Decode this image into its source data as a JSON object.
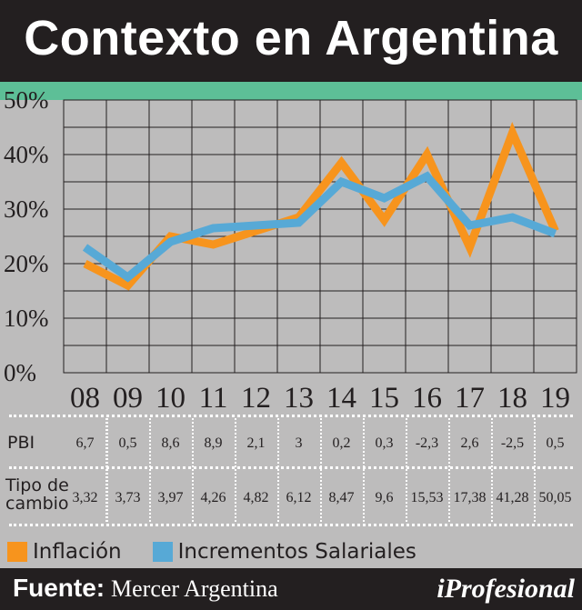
{
  "header": {
    "title": "Contexto en Argentina"
  },
  "colors": {
    "inflation": "#f7941d",
    "salary": "#57a9d6",
    "dark": "#231f20",
    "teal": "#5dbf97"
  },
  "chart_data": {
    "type": "line",
    "categories": [
      "08",
      "09",
      "10",
      "11",
      "12",
      "13",
      "14",
      "15",
      "16",
      "17",
      "18",
      "19"
    ],
    "y_ticks": [
      "0%",
      "10%",
      "20%",
      "30%",
      "40%",
      "50%"
    ],
    "ylim": [
      0,
      50
    ],
    "grid": true,
    "legend_position": "bottom",
    "series": [
      {
        "name": "Inflación",
        "values": [
          20,
          16,
          25,
          23.5,
          26,
          28.5,
          38.5,
          28,
          40,
          23,
          44,
          26
        ]
      },
      {
        "name": "Incrementos Salariales",
        "values": [
          23,
          17.5,
          24,
          26.5,
          27,
          27.5,
          35,
          32,
          36,
          27,
          28.5,
          25.5
        ]
      }
    ]
  },
  "table": {
    "rows": [
      {
        "label": "PBI",
        "values": [
          "6,7",
          "0,5",
          "8,6",
          "8,9",
          "2,1",
          "3",
          "0,2",
          "0,3",
          "-2,3",
          "2,6",
          "-2,5",
          "0,5"
        ]
      },
      {
        "label_line1": "Tipo de",
        "label_line2": "cambio",
        "values": [
          "3,32",
          "3,73",
          "3,97",
          "4,26",
          "4,82",
          "6,12",
          "8,47",
          "9,6",
          "15,53",
          "17,38",
          "41,28",
          "50,05"
        ]
      }
    ]
  },
  "legend": {
    "inflation": "Inflación",
    "salary": "Incrementos Salariales"
  },
  "footer": {
    "source_label": "Fuente:",
    "source_value": "Mercer Argentina",
    "brand": "iProfesional"
  }
}
